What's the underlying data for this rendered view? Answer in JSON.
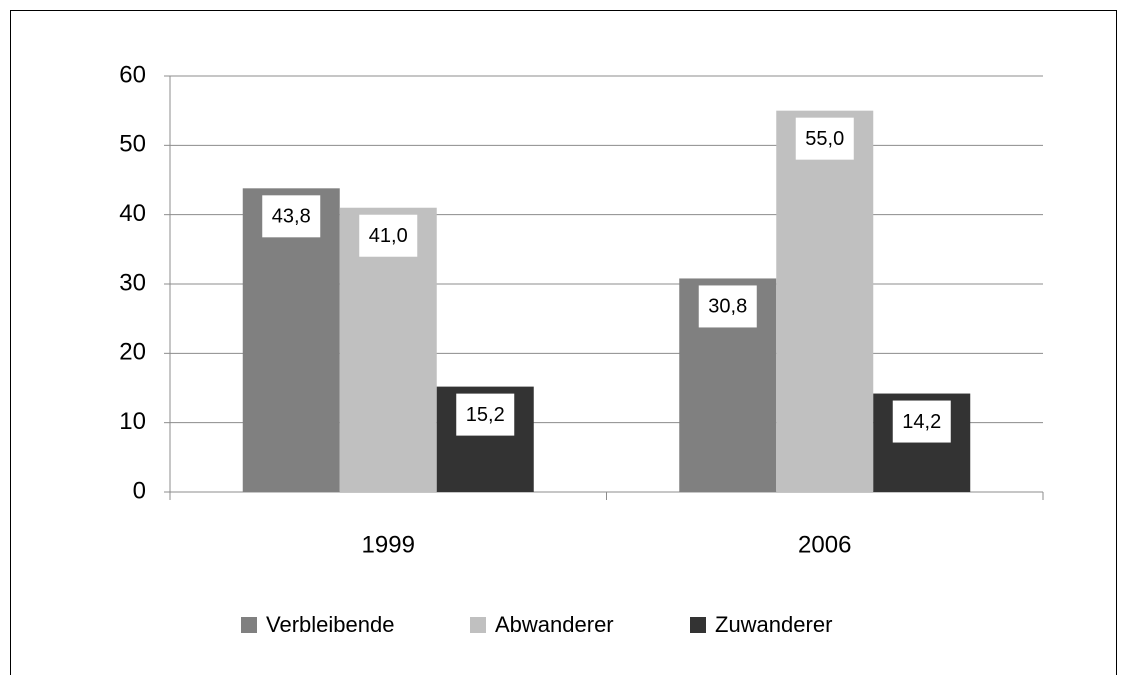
{
  "chart_data": {
    "type": "bar",
    "categories": [
      "1999",
      "2006"
    ],
    "series": [
      {
        "name": "Verbleibende",
        "color": "#808080",
        "values": [
          43.8,
          30.8
        ],
        "value_labels": [
          "43,8",
          "30,8"
        ]
      },
      {
        "name": "Abwanderer",
        "color": "#c0c0c0",
        "values": [
          41.0,
          55.0
        ],
        "value_labels": [
          "41,0",
          "55,0"
        ]
      },
      {
        "name": "Zuwanderer",
        "color": "#333333",
        "values": [
          15.2,
          14.2
        ],
        "value_labels": [
          "15,2",
          "14,2"
        ]
      }
    ],
    "ylim": [
      0,
      60
    ],
    "yticks": [
      0,
      10,
      20,
      30,
      40,
      50,
      60
    ],
    "grid": true,
    "legend": "bottom"
  }
}
